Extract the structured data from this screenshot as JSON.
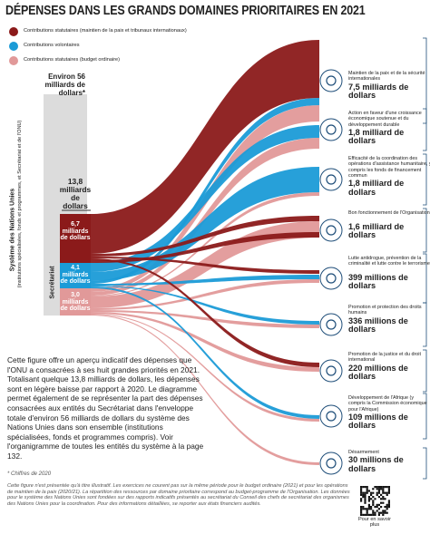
{
  "title": "DÉPENSES DANS LES GRANDS DOMAINES PRIORITAIRES EN 2021",
  "legend": [
    "Contributions statutaires (maintien de la paix et tribunaux internationaux)",
    "Contributions volontaires",
    "Contributions statutaires (budget ordinaire)"
  ],
  "system": {
    "total": "Environ 56 milliards de dollars*",
    "label": "Système des Nations Unies",
    "sublabel": "(institutions spécialisées, fonds et programmes, et Secrétariat et de l'ONU)"
  },
  "secretariat": {
    "label": "Secrétariat",
    "total": "13,8 milliards de dollars",
    "parts": [
      "6,7 milliards de dollars",
      "4,1 milliards de dollars",
      "3,0 milliards de dollars"
    ]
  },
  "domains": [
    {
      "description": "Maintien de la paix et de la sécurité internationales",
      "amount": "7,5 milliards de dollars"
    },
    {
      "description": "Action en faveur d'une croissance économique soutenue et du développement durable",
      "amount": "1,8 milliard de dollars"
    },
    {
      "description": "Efficacité de la coordination des opérations d'assistance humanitaire, y compris les fonds de financement commun",
      "amount": "1,8 milliard de dollars"
    },
    {
      "description": "Bon fonctionnement de l'Organisation",
      "amount": "1,6 milliard de dollars"
    },
    {
      "description": "Lutte antidrogue, prévention de la criminalité et lutte contre le terrorisme",
      "amount": "399 millions de dollars"
    },
    {
      "description": "Promotion et protection des droits humains",
      "amount": "336 millions de dollars"
    },
    {
      "description": "Promotion de la justice et du droit international",
      "amount": "220 millions de dollars"
    },
    {
      "description": "Développement de l'Afrique (y compris la Commission économique pour l'Afrique)",
      "amount": "109 millions de dollars"
    },
    {
      "description": "Désarmement",
      "amount": "30 millions de dollars"
    }
  ],
  "body": "Cette figure offre un aperçu indicatif des dépenses que l'ONU a consacrées à ses huit grandes priorités en 2021. Totalisant quelque 13,8 milliards de dollars, les dépenses sont en légère baisse par rapport à 2020. Le diagramme permet également de se représenter la part des dépenses consacrées aux entités du Secrétariat dans l'enveloppe totale d'environ 56 milliards de dollars du système des Nations Unies dans son ensemble (institutions spécialisées, fonds et programmes compris). Voir l'organigramme de toutes les entités du système à la page 132.",
  "footnote": "* Chiffres de 2020",
  "note": "Cette figure n'est présentée qu'à titre illustratif. Les exercices ne courent pas sur la même période pour le budget ordinaire (2021) et pour les opérations de maintien de la paix (2020/21). La répartition des ressources par domaine prioritaire correspond au budget-programme de l'Organisation. Les données pour le système des Nations Unies sont fondées sur des rapports indicatifs présentés au secrétariat du Conseil des chefs de secrétariat des organismes des Nations Unies pour la coordination. Pour des informations détaillées, se reporter aux états financiers audités.",
  "qr_caption": "Pour en savoir plus"
}
